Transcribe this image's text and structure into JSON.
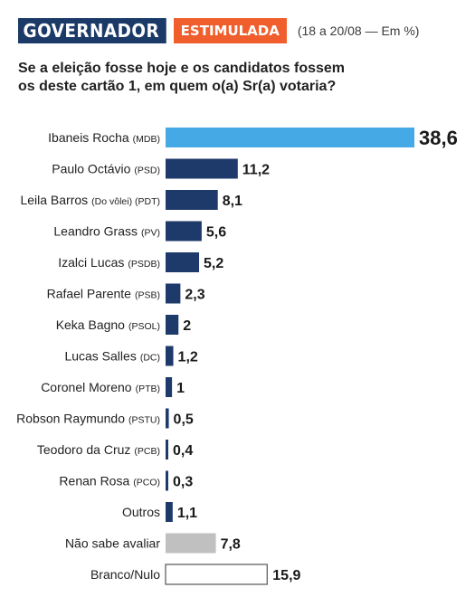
{
  "header": {
    "title": "GOVERNADOR",
    "subtitle": "ESTIMULADA",
    "note": "(18 a 20/08 — Em %)"
  },
  "question": {
    "line1": "Se a eleição fosse hoje e os candidatos fossem",
    "line2": "os deste cartão 1, em quem o(a) Sr(a) votaria?"
  },
  "colors": {
    "header_blue": "#1b3a68",
    "header_orange": "#ef5e2c",
    "bar_leader": "#45a9e6",
    "bar_default": "#1e3a6b",
    "bar_undecided": "#c0c0c0",
    "bar_blank_fill": "#ffffff",
    "bar_blank_stroke": "#555555"
  },
  "chart_data": {
    "type": "bar",
    "orientation": "horizontal",
    "items": [
      {
        "name": "Ibaneis Rocha",
        "party": "(MDB)",
        "value": 38.6,
        "label": "38,6",
        "style": "leader"
      },
      {
        "name": "Paulo Octávio",
        "party": "(PSD)",
        "value": 11.2,
        "label": "11,2",
        "style": "default"
      },
      {
        "name": "Leila Barros",
        "party": "(Do vôlei) (PDT)",
        "value": 8.1,
        "label": "8,1",
        "style": "default"
      },
      {
        "name": "Leandro Grass",
        "party": "(PV)",
        "value": 5.6,
        "label": "5,6",
        "style": "default"
      },
      {
        "name": "Izalci Lucas",
        "party": "(PSDB)",
        "value": 5.2,
        "label": "5,2",
        "style": "default"
      },
      {
        "name": "Rafael Parente",
        "party": "(PSB)",
        "value": 2.3,
        "label": "2,3",
        "style": "default"
      },
      {
        "name": "Keka Bagno",
        "party": "(PSOL)",
        "value": 2,
        "label": "2",
        "style": "default"
      },
      {
        "name": "Lucas Salles",
        "party": "(DC)",
        "value": 1.2,
        "label": "1,2",
        "style": "default"
      },
      {
        "name": "Coronel Moreno",
        "party": "(PTB)",
        "value": 1,
        "label": "1",
        "style": "default"
      },
      {
        "name": "Robson Raymundo",
        "party": "(PSTU)",
        "value": 0.5,
        "label": "0,5",
        "style": "default"
      },
      {
        "name": "Teodoro da Cruz",
        "party": "(PCB)",
        "value": 0.4,
        "label": "0,4",
        "style": "default"
      },
      {
        "name": "Renan Rosa",
        "party": "(PCO)",
        "value": 0.3,
        "label": "0,3",
        "style": "default"
      },
      {
        "name": "Outros",
        "party": "",
        "value": 1.1,
        "label": "1,1",
        "style": "default"
      },
      {
        "name": "Não sabe avaliar",
        "party": "",
        "value": 7.8,
        "label": "7,8",
        "style": "undecided"
      },
      {
        "name": "Branco/Nulo",
        "party": "",
        "value": 15.9,
        "label": "15,9",
        "style": "blank"
      }
    ]
  }
}
